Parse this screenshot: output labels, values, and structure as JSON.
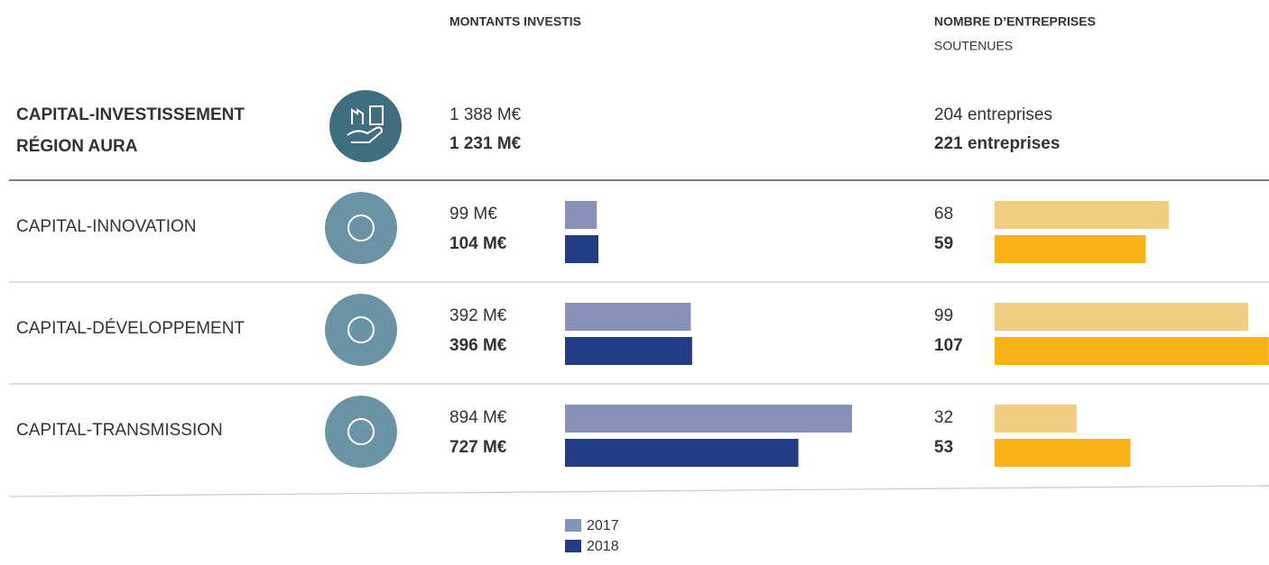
{
  "headers": {
    "amounts": "MONTANTS INVESTIS",
    "companies_line1": "NOMBRE D’ENTREPRISES",
    "companies_line2": "SOUTENUES"
  },
  "total": {
    "label_line1": "CAPITAL-INVESTISSEMENT",
    "label_line2": "RÉGION AURA",
    "amounts": [
      "1 388 M€",
      "1 231 M€"
    ],
    "companies": [
      "204 entreprises",
      "221 entreprises"
    ]
  },
  "rows": [
    {
      "label": "CAPITAL-INNOVATION",
      "amounts": [
        99,
        104
      ],
      "amount_labels": [
        "99 M€",
        "104 M€"
      ],
      "companies": [
        68,
        59
      ]
    },
    {
      "label": "CAPITAL-DÉVELOPPEMENT",
      "amounts": [
        392,
        396
      ],
      "amount_labels": [
        "392 M€",
        "396 M€"
      ],
      "companies": [
        99,
        107
      ]
    },
    {
      "label": "CAPITAL-TRANSMISSION",
      "amounts": [
        894,
        727
      ],
      "amount_labels": [
        "894 M€",
        "727 M€"
      ],
      "companies": [
        32,
        53
      ]
    }
  ],
  "legend": [
    "2017",
    "2018"
  ],
  "amount_colors": [
    "#8892b8",
    "#223d85"
  ],
  "company_colors": [
    "#f0cd80",
    "#f8b417"
  ]
}
